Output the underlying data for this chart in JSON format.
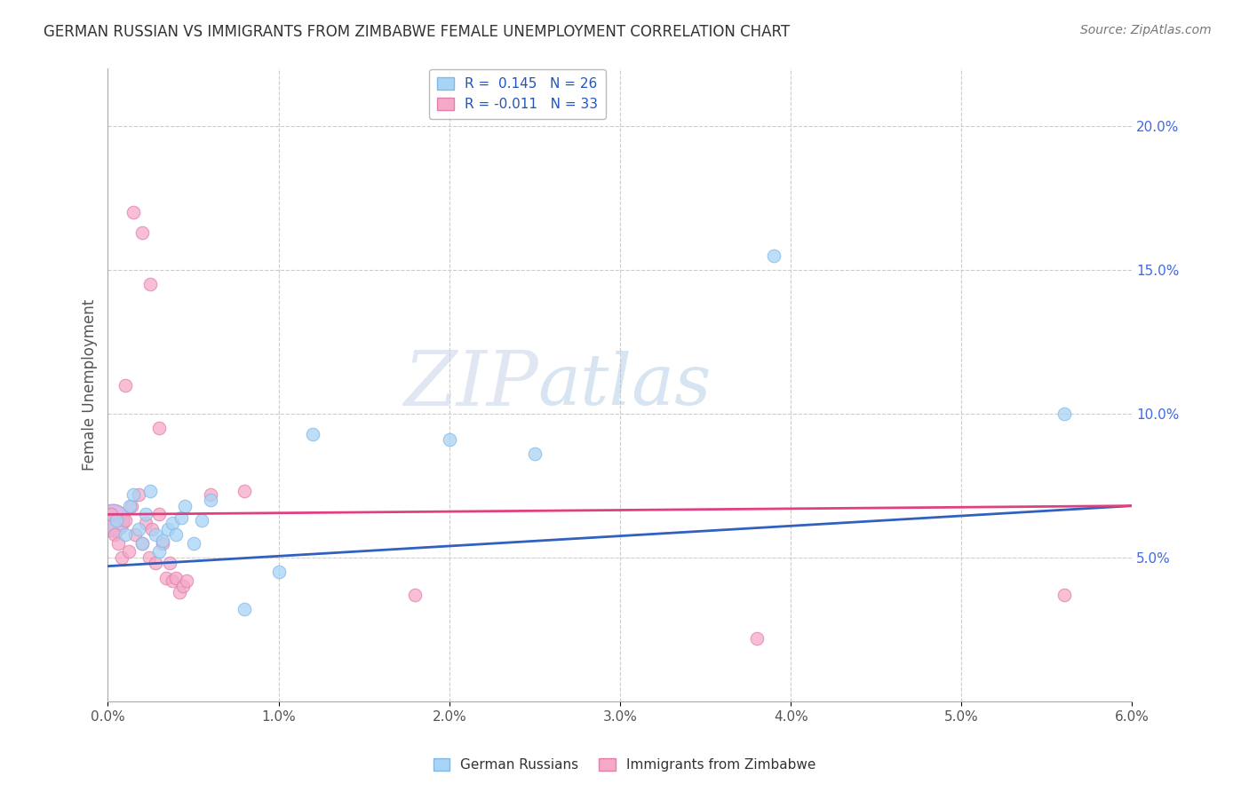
{
  "title": "GERMAN RUSSIAN VS IMMIGRANTS FROM ZIMBABWE FEMALE UNEMPLOYMENT CORRELATION CHART",
  "source": "Source: ZipAtlas.com",
  "ylabel": "Female Unemployment",
  "legend1_text": "R =  0.145   N = 26",
  "legend2_text": "R = -0.011   N = 33",
  "color_blue": "#a8d4f5",
  "color_pink": "#f5a8c8",
  "color_blue_line": "#3060c0",
  "color_pink_line": "#e04080",
  "watermark_zip": "ZIP",
  "watermark_atlas": "atlas",
  "german_russians": [
    [
      0.0005,
      0.063
    ],
    [
      0.001,
      0.058
    ],
    [
      0.0013,
      0.068
    ],
    [
      0.0015,
      0.072
    ],
    [
      0.0018,
      0.06
    ],
    [
      0.002,
      0.055
    ],
    [
      0.0022,
      0.065
    ],
    [
      0.0025,
      0.073
    ],
    [
      0.0028,
      0.058
    ],
    [
      0.003,
      0.052
    ],
    [
      0.0032,
      0.056
    ],
    [
      0.0035,
      0.06
    ],
    [
      0.0038,
      0.062
    ],
    [
      0.004,
      0.058
    ],
    [
      0.0043,
      0.064
    ],
    [
      0.0045,
      0.068
    ],
    [
      0.005,
      0.055
    ],
    [
      0.0055,
      0.063
    ],
    [
      0.006,
      0.07
    ],
    [
      0.008,
      0.032
    ],
    [
      0.01,
      0.045
    ],
    [
      0.012,
      0.093
    ],
    [
      0.02,
      0.091
    ],
    [
      0.025,
      0.086
    ],
    [
      0.039,
      0.155
    ],
    [
      0.056,
      0.1
    ]
  ],
  "immigrants_zimbabwe": [
    [
      0.0002,
      0.065
    ],
    [
      0.0004,
      0.058
    ],
    [
      0.0006,
      0.055
    ],
    [
      0.0008,
      0.05
    ],
    [
      0.001,
      0.063
    ],
    [
      0.0012,
      0.052
    ],
    [
      0.0014,
      0.068
    ],
    [
      0.0016,
      0.058
    ],
    [
      0.0018,
      0.072
    ],
    [
      0.002,
      0.055
    ],
    [
      0.0022,
      0.062
    ],
    [
      0.0024,
      0.05
    ],
    [
      0.0026,
      0.06
    ],
    [
      0.0028,
      0.048
    ],
    [
      0.003,
      0.065
    ],
    [
      0.0032,
      0.055
    ],
    [
      0.0034,
      0.043
    ],
    [
      0.0036,
      0.048
    ],
    [
      0.0038,
      0.042
    ],
    [
      0.004,
      0.043
    ],
    [
      0.0042,
      0.038
    ],
    [
      0.0044,
      0.04
    ],
    [
      0.0046,
      0.042
    ],
    [
      0.0015,
      0.17
    ],
    [
      0.002,
      0.163
    ],
    [
      0.0025,
      0.145
    ],
    [
      0.001,
      0.11
    ],
    [
      0.003,
      0.095
    ],
    [
      0.006,
      0.072
    ],
    [
      0.008,
      0.073
    ],
    [
      0.018,
      0.037
    ],
    [
      0.038,
      0.022
    ],
    [
      0.056,
      0.037
    ]
  ],
  "xlim": [
    0.0,
    0.06
  ],
  "ylim": [
    0.0,
    0.22
  ],
  "ytick_values": [
    0.05,
    0.1,
    0.15,
    0.2
  ],
  "xtick_values": [
    0.0,
    0.01,
    0.02,
    0.03,
    0.04,
    0.05,
    0.06
  ],
  "dot_size": 110,
  "large_dot_size": 700
}
